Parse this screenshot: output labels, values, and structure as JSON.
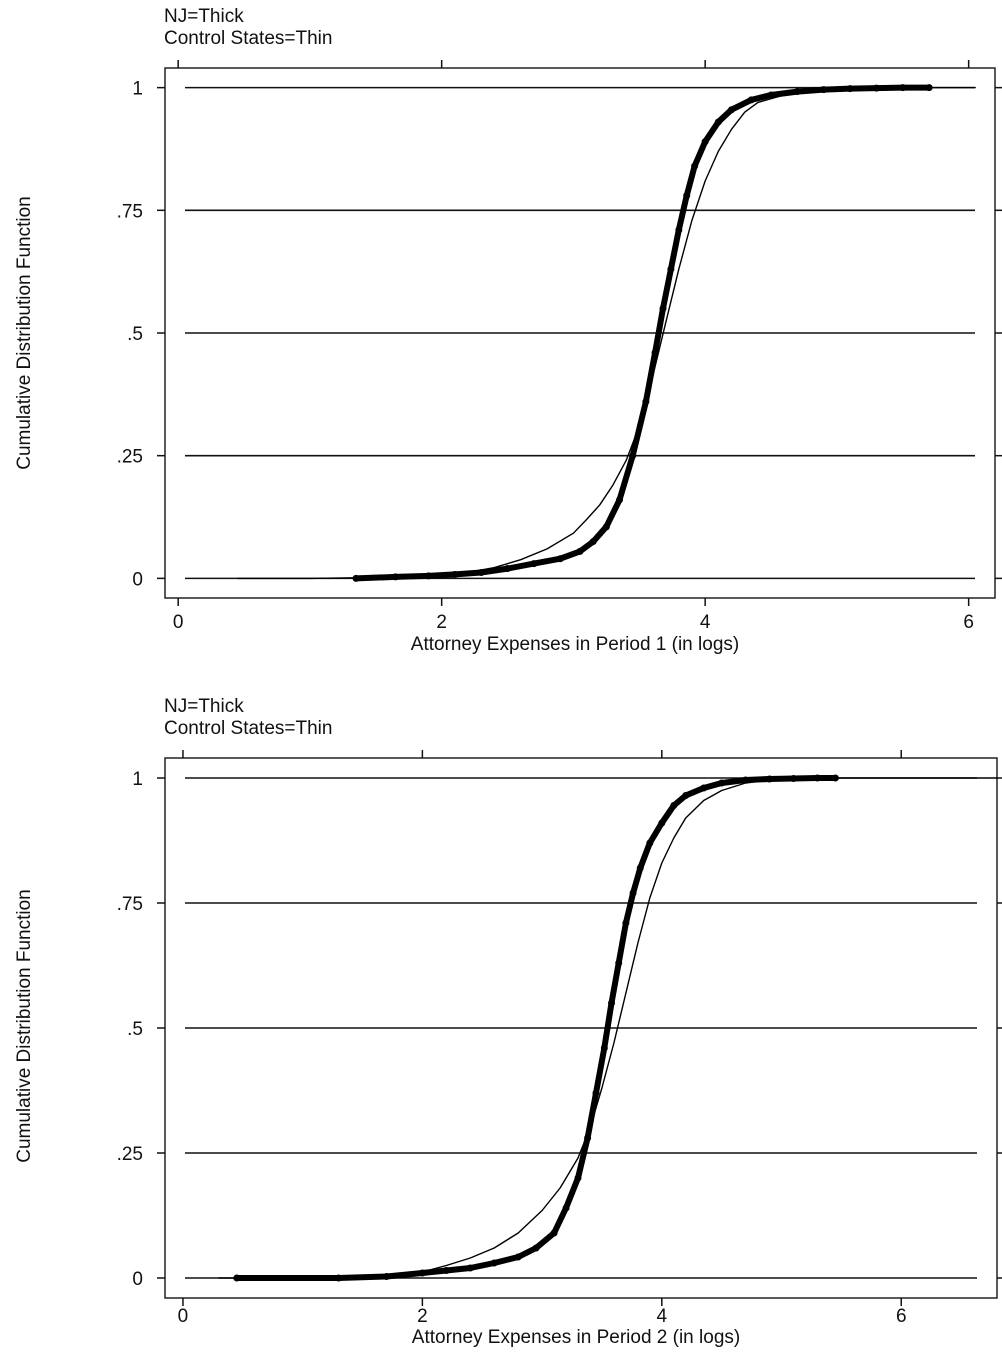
{
  "chart_data": [
    {
      "type": "line",
      "annotation": [
        "NJ=Thick",
        "Control States=Thin"
      ],
      "xlabel": "Attorney Expenses in Period 1 (in logs)",
      "ylabel": "Cumulative Distribution Function",
      "xlim": [
        -0.1,
        6.2
      ],
      "ylim": [
        -0.04,
        1.04
      ],
      "xticks": [
        0,
        2,
        4,
        6
      ],
      "xtick_labels": [
        "0",
        "2",
        "4",
        "6"
      ],
      "yticks": [
        0,
        0.25,
        0.5,
        0.75,
        1
      ],
      "ytick_labels": [
        "0",
        ".25",
        ".5",
        ".75",
        "1"
      ],
      "grid": "horizontal",
      "series": [
        {
          "name": "NJ",
          "style": "thick",
          "x": [
            1.35,
            1.65,
            1.9,
            2.1,
            2.3,
            2.5,
            2.7,
            2.9,
            3.05,
            3.15,
            3.25,
            3.35,
            3.45,
            3.55,
            3.62,
            3.68,
            3.74,
            3.8,
            3.86,
            3.92,
            4.0,
            4.1,
            4.2,
            4.35,
            4.5,
            4.7,
            4.9,
            5.1,
            5.3,
            5.5,
            5.7
          ],
          "y": [
            0.0,
            0.003,
            0.005,
            0.008,
            0.012,
            0.02,
            0.03,
            0.04,
            0.055,
            0.075,
            0.105,
            0.16,
            0.25,
            0.36,
            0.46,
            0.55,
            0.63,
            0.71,
            0.78,
            0.84,
            0.89,
            0.93,
            0.955,
            0.975,
            0.985,
            0.992,
            0.996,
            0.998,
            0.999,
            1.0,
            1.0
          ]
        },
        {
          "name": "Control States",
          "style": "thin",
          "x": [
            0.45,
            1.0,
            1.5,
            2.0,
            2.2,
            2.4,
            2.6,
            2.8,
            3.0,
            3.1,
            3.2,
            3.3,
            3.4,
            3.5,
            3.6,
            3.7,
            3.8,
            3.9,
            4.0,
            4.1,
            4.2,
            4.3,
            4.4,
            4.6,
            4.8,
            5.0,
            5.5,
            6.05
          ],
          "y": [
            0.0,
            0.0,
            0.002,
            0.005,
            0.012,
            0.022,
            0.038,
            0.06,
            0.092,
            0.12,
            0.15,
            0.19,
            0.24,
            0.31,
            0.41,
            0.52,
            0.63,
            0.73,
            0.81,
            0.87,
            0.915,
            0.95,
            0.97,
            0.985,
            0.993,
            0.997,
            1.0,
            1.0
          ]
        }
      ]
    },
    {
      "type": "line",
      "annotation": [
        "NJ=Thick",
        "Control States=Thin"
      ],
      "xlabel": "Attorney Expenses in Period 2 (in logs)",
      "ylabel": "Cumulative Distribution Function",
      "xlim": [
        -0.15,
        6.8
      ],
      "ylim": [
        -0.04,
        1.04
      ],
      "xticks": [
        0,
        2,
        4,
        6
      ],
      "xtick_labels": [
        "0",
        "2",
        "4",
        "6"
      ],
      "yticks": [
        0,
        0.25,
        0.5,
        0.75,
        1
      ],
      "ytick_labels": [
        "0",
        ".25",
        ".5",
        ".75",
        "1"
      ],
      "grid": "horizontal",
      "series": [
        {
          "name": "NJ",
          "style": "thick",
          "x": [
            0.45,
            1.3,
            1.7,
            2.0,
            2.2,
            2.4,
            2.6,
            2.8,
            2.95,
            3.1,
            3.2,
            3.3,
            3.38,
            3.45,
            3.52,
            3.58,
            3.64,
            3.7,
            3.76,
            3.82,
            3.9,
            4.0,
            4.1,
            4.2,
            4.35,
            4.5,
            4.7,
            4.9,
            5.1,
            5.3,
            5.45
          ],
          "y": [
            0.0,
            0.0,
            0.003,
            0.01,
            0.015,
            0.02,
            0.03,
            0.042,
            0.06,
            0.09,
            0.14,
            0.2,
            0.28,
            0.37,
            0.46,
            0.55,
            0.63,
            0.71,
            0.77,
            0.82,
            0.87,
            0.91,
            0.945,
            0.965,
            0.98,
            0.99,
            0.996,
            0.998,
            0.999,
            1.0,
            1.0
          ]
        },
        {
          "name": "Control States",
          "style": "thin",
          "x": [
            0.3,
            1.2,
            1.7,
            2.0,
            2.2,
            2.4,
            2.6,
            2.8,
            3.0,
            3.15,
            3.3,
            3.4,
            3.5,
            3.6,
            3.7,
            3.8,
            3.9,
            4.0,
            4.1,
            4.2,
            4.35,
            4.5,
            4.7,
            4.9,
            5.1,
            5.5,
            6.8
          ],
          "y": [
            0.0,
            0.0,
            0.003,
            0.012,
            0.025,
            0.04,
            0.06,
            0.09,
            0.135,
            0.18,
            0.24,
            0.3,
            0.38,
            0.47,
            0.57,
            0.67,
            0.76,
            0.83,
            0.88,
            0.92,
            0.955,
            0.975,
            0.99,
            0.996,
            0.998,
            1.0,
            1.0
          ]
        }
      ]
    }
  ]
}
